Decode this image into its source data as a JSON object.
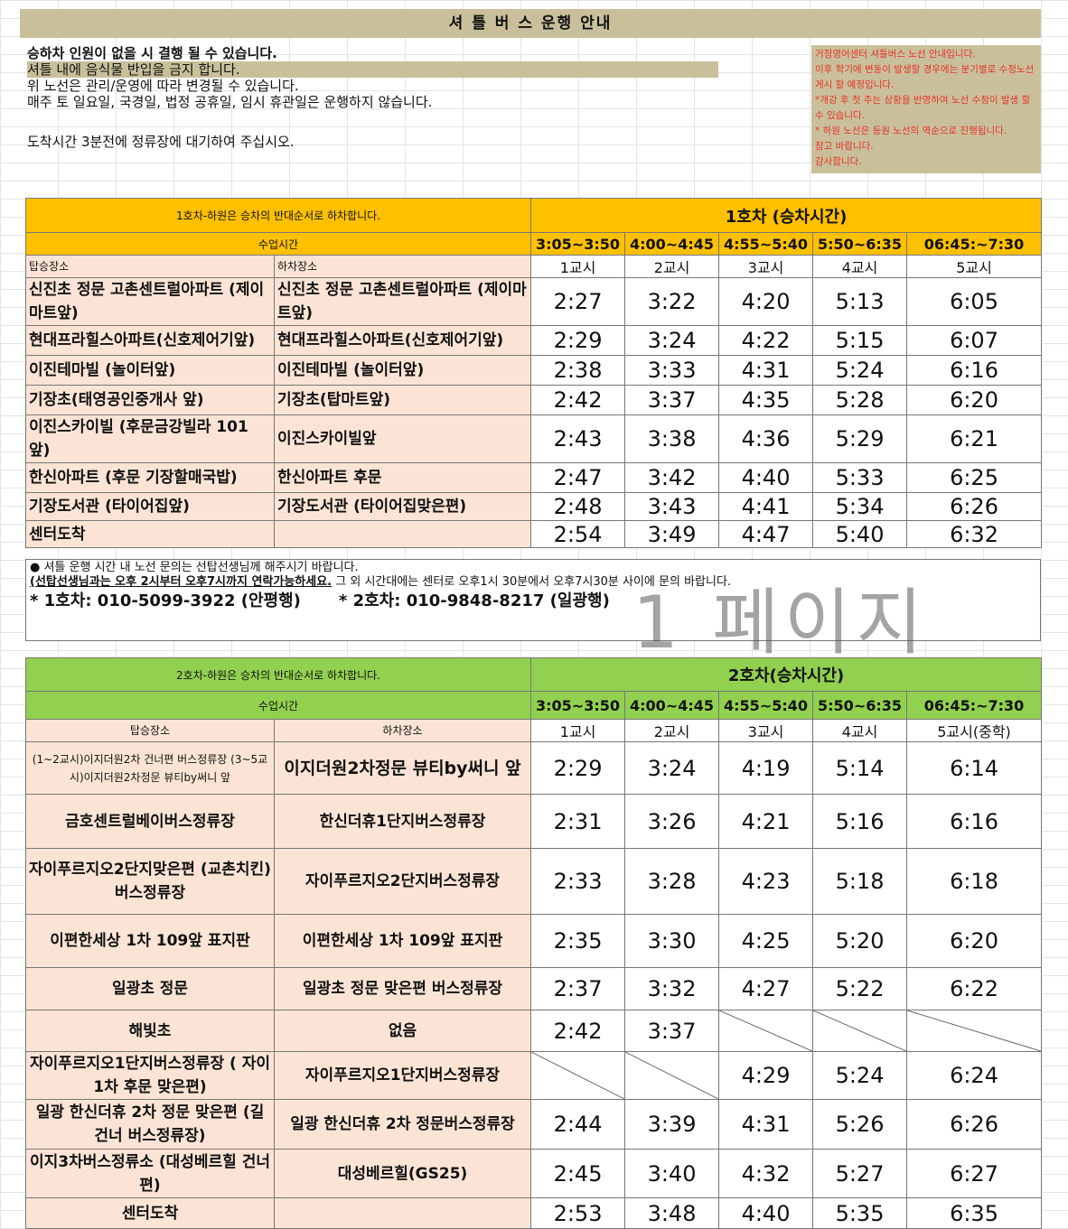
{
  "title": "셔 틀 버 스 운행  안내",
  "notes": [
    "승하차 인원이 없을 시 결행 될 수 있습니다.",
    "셔틀 내에 음식물 반입을 금지 합니다.",
    "위 노선은 관리/운영에 따라 변경될 수 있습니다.",
    "매주 토 일요일, 국경일, 법정 공휴일, 임시 휴관일은 운행하지 않습니다.",
    "",
    "도착시간 3분전에 정류장에 대기하여 주십시오."
  ],
  "side_notes": [
    "거점영어센터 셔틀버스 노선 안내입니다.",
    "이후 학기에 변동이 발생할 경우에는 분기별로 수정노선 게시 할 예정입니다.",
    "*개강 후 첫 주는 상황을 반영하여 노선 수정이 발생 할 수 있습니다.",
    "* 하원 노선은 등원 노선의 역순으로 진행됩니다.",
    "참고 바랍니다.",
    "감사합니다."
  ],
  "colors": {
    "title_bg": "#c9c09b",
    "bus1": "#ffc000",
    "bus2": "#92d050",
    "stop_bg": "#fbe4d5",
    "side_text": "#e8322a"
  },
  "bus1": {
    "note": "1호차-하원은 승차의 반대순서로 하차합니다.",
    "title": "1호차 (승차시간)",
    "class_time": "수업시간",
    "time_ranges": [
      "3:05~3:50",
      "4:00~4:45",
      "4:55~5:40",
      "5:50~6:35",
      "06:45:~7:30"
    ],
    "board_label": "탑승장소",
    "drop_label": "하차장소",
    "periods": [
      "1교시",
      "2교시",
      "3교시",
      "4교시",
      "5교시"
    ],
    "rows": [
      {
        "board": "신진초 정문 고촌센트럴아파트 (제이마트앞)",
        "drop": "신진초 정문 고촌센트럴아파트 (제이마트앞)",
        "times": [
          "2:27",
          "3:22",
          "4:20",
          "5:13",
          "6:05"
        ]
      },
      {
        "board": "현대프라힐스아파트(신호제어기앞)",
        "drop": "현대프라힐스아파트(신호제어기앞)",
        "times": [
          "2:29",
          "3:24",
          "4:22",
          "5:15",
          "6:07"
        ]
      },
      {
        "board": "이진테마빌 (놀이터앞)",
        "drop": "이진테마빌 (놀이터앞)",
        "times": [
          "2:38",
          "3:33",
          "4:31",
          "5:24",
          "6:16"
        ]
      },
      {
        "board": "기장초(태영공인중개사 앞)",
        "drop": "기장초(탑마트앞)",
        "times": [
          "2:42",
          "3:37",
          "4:35",
          "5:28",
          "6:20"
        ]
      },
      {
        "board": "이진스카이빌 (후문금강빌라 101 앞)",
        "drop": "이진스카이빌앞",
        "times": [
          "2:43",
          "3:38",
          "4:36",
          "5:29",
          "6:21"
        ]
      },
      {
        "board": "한신아파트 (후문 기장할매국밥)",
        "drop": "한신아파트 후문",
        "times": [
          "2:47",
          "3:42",
          "4:40",
          "5:33",
          "6:25"
        ]
      },
      {
        "board": "기장도서관 (타이어집앞)",
        "drop": "기장도서관 (타이어집맞은편)",
        "times": [
          "2:48",
          "3:43",
          "4:41",
          "5:34",
          "6:26"
        ]
      },
      {
        "board": "센터도착",
        "drop": "",
        "times": [
          "2:54",
          "3:49",
          "4:47",
          "5:40",
          "6:32"
        ]
      }
    ]
  },
  "notice": {
    "line1": "● 셔틀 운행 시간 내 노선 문의는 선탑선생님께 해주시기 바랍니다.",
    "line2_underlined": "(선탑선생님과는 오후 2시부터 오후7시까지 연락가능하세요.",
    "line2_rest": " 그 외 시간대에는 센터로 오후1시 30분에서 오후7시30분 사이에 문의 바랍니다.",
    "phone1": "* 1호차: 010-5099-3922 (안평행)",
    "phone2": "* 2호차: 010-9848-8217 (일광행)"
  },
  "watermark": "1 페이지",
  "bus2": {
    "note": "2호차-하원은 승차의 반대순서로 하차합니다.",
    "title": "2호차(승차시간)",
    "class_time": "수업시간",
    "time_ranges": [
      "3:05~3:50",
      "4:00~4:45",
      "4:55~5:40",
      "5:50~6:35",
      "06:45:~7:30"
    ],
    "board_label": "탑승장소",
    "drop_label": "하차장소",
    "periods": [
      "1교시",
      "2교시",
      "3교시",
      "4교시",
      "5교시(중학)"
    ],
    "rows": [
      {
        "board": "(1~2교시)이지더원2차 건너편 버스정류장 (3~5교시)이지더원2차정문 뷰티by써니 앞",
        "drop": "이지더원2차정문 뷰티by써니 앞",
        "times": [
          "2:29",
          "3:24",
          "4:19",
          "5:14",
          "6:14"
        ]
      },
      {
        "board": "금호센트럴베이버스정류장",
        "drop": "한신더휴1단지버스정류장",
        "times": [
          "2:31",
          "3:26",
          "4:21",
          "5:16",
          "6:16"
        ]
      },
      {
        "board": "자이푸르지오2단지맞은편 (교촌치킨)버스정류장",
        "drop": "자이푸르지오2단지버스정류장",
        "times": [
          "2:33",
          "3:28",
          "4:23",
          "5:18",
          "6:18"
        ]
      },
      {
        "board": "이편한세상 1차 109앞 표지판",
        "drop": "이편한세상 1차 109앞 표지판",
        "times": [
          "2:35",
          "3:30",
          "4:25",
          "5:20",
          "6:20"
        ]
      },
      {
        "board": "일광초 정문",
        "drop": "일광초 정문 맞은편 버스정류장",
        "times": [
          "2:37",
          "3:32",
          "4:27",
          "5:22",
          "6:22"
        ]
      },
      {
        "board": "해빛초",
        "drop": "없음",
        "times": [
          "2:42",
          "3:37",
          null,
          null,
          null
        ]
      },
      {
        "board": "자이푸르지오1단지버스정류장 ( 자이 1차 후문 맞은편)",
        "drop": "자이푸르지오1단지버스정류장",
        "times": [
          null,
          null,
          "4:29",
          "5:24",
          "6:24"
        ]
      },
      {
        "board": "일광 한신더휴 2차 정문 맞은편 (길건너 버스정류장)",
        "drop": "일광 한신더휴 2차 정문버스정류장",
        "times": [
          "2:44",
          "3:39",
          "4:31",
          "5:26",
          "6:26"
        ]
      },
      {
        "board": "이지3차버스정류소 (대성베르힐 건너편)",
        "drop": "대성베르힐(GS25)",
        "times": [
          "2:45",
          "3:40",
          "4:32",
          "5:27",
          "6:27"
        ]
      },
      {
        "board": "센터도착",
        "drop": "",
        "times": [
          "2:53",
          "3:48",
          "4:40",
          "5:35",
          "6:35"
        ]
      }
    ]
  }
}
